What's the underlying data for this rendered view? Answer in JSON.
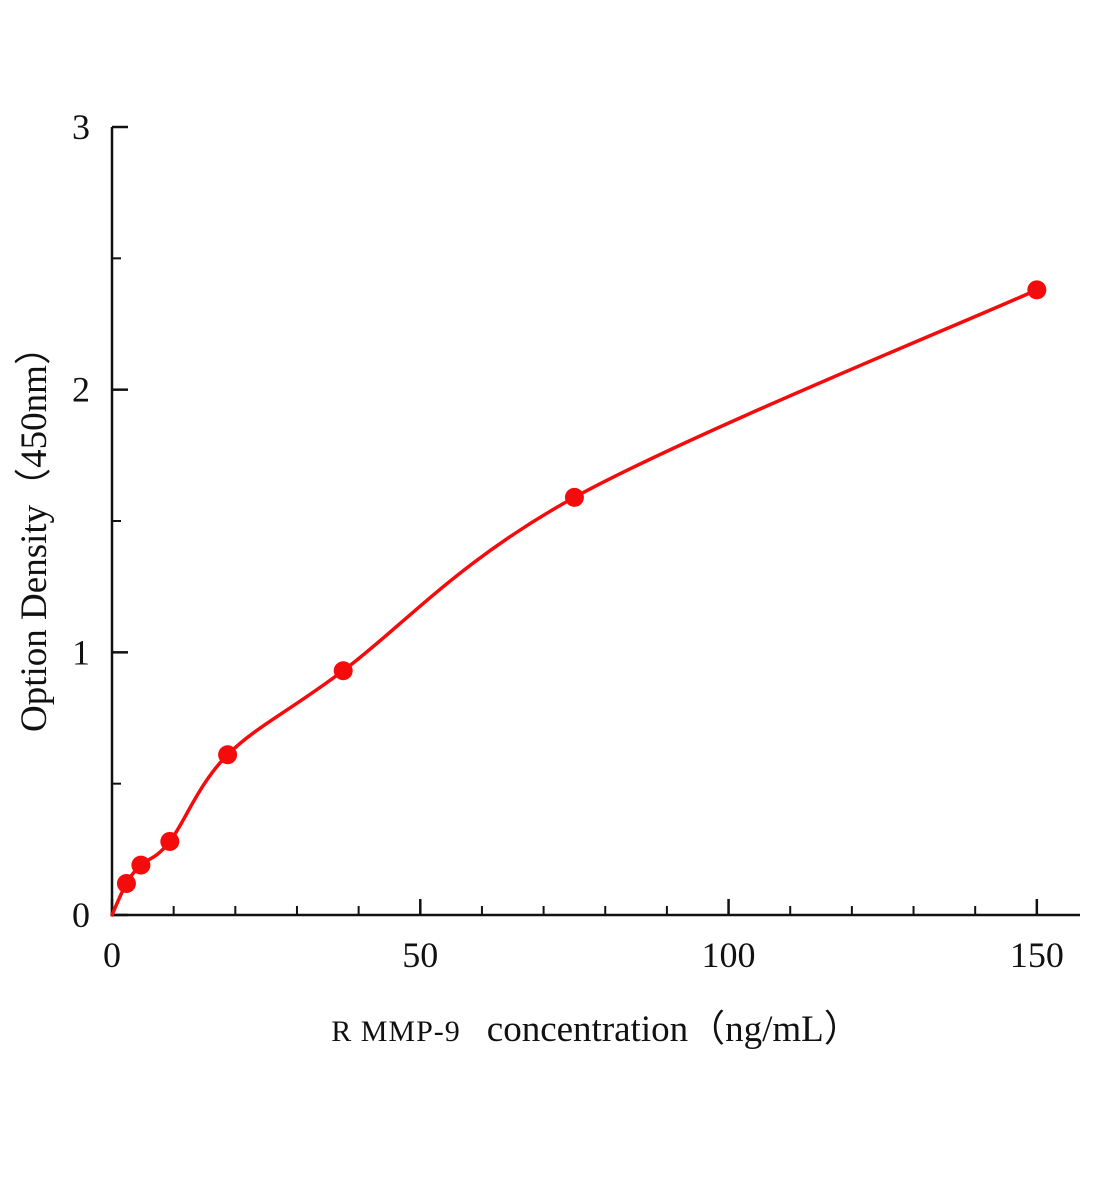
{
  "chart_data": {
    "type": "scatter-line",
    "title": "",
    "xlabel_prefix": "R MMP-9",
    "xlabel_main": "concentration（ng/mL）",
    "ylabel": "Option Density（450nm）",
    "xlim": [
      0,
      157
    ],
    "ylim": [
      0,
      3
    ],
    "xticks": [
      0,
      50,
      100,
      150
    ],
    "yticks": [
      0,
      1,
      2,
      3
    ],
    "x_minor_step": 10,
    "y_minor_step": 0.5,
    "grid": "off",
    "legend": "none",
    "line_color": "#f40b0b",
    "point_color": "#f40b0b",
    "axis_color": "#111111",
    "background": "#ffffff",
    "curve_start": {
      "x": 0,
      "y": 0
    },
    "points": [
      {
        "x": 2.34,
        "y": 0.12
      },
      {
        "x": 4.69,
        "y": 0.19
      },
      {
        "x": 9.38,
        "y": 0.28
      },
      {
        "x": 18.75,
        "y": 0.61
      },
      {
        "x": 37.5,
        "y": 0.93
      },
      {
        "x": 75,
        "y": 1.59
      },
      {
        "x": 150,
        "y": 2.38
      }
    ]
  }
}
